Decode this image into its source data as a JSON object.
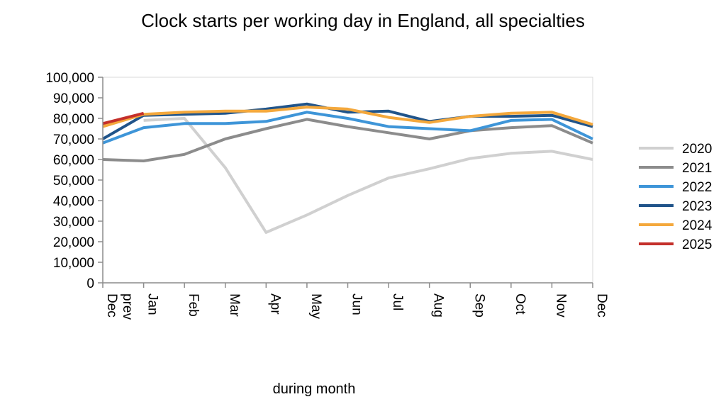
{
  "chart_data": {
    "type": "line",
    "title": "Clock starts per working day in England, all specialties",
    "xlabel": "during month",
    "ylabel": "",
    "ylim": [
      0,
      100000
    ],
    "yticks": [
      0,
      10000,
      20000,
      30000,
      40000,
      50000,
      60000,
      70000,
      80000,
      90000,
      100000
    ],
    "ytick_labels": [
      "0",
      "10,000",
      "20,000",
      "30,000",
      "40,000",
      "50,000",
      "60,000",
      "70,000",
      "80,000",
      "90,000",
      "100,000"
    ],
    "categories": [
      "Dec prev",
      "Jan",
      "Feb",
      "Mar",
      "Apr",
      "May",
      "Jun",
      "Jul",
      "Aug",
      "Sep",
      "Oct",
      "Nov",
      "Dec"
    ],
    "grid": false,
    "legend_position": "right",
    "series": [
      {
        "name": "2020",
        "color": "#d0d0d0",
        "values": [
          null,
          79000,
          80000,
          56000,
          24500,
          33000,
          42500,
          51000,
          55500,
          60500,
          63000,
          64000,
          60000
        ]
      },
      {
        "name": "2021",
        "color": "#8c8c8c",
        "values": [
          60000,
          59300,
          62500,
          70000,
          75000,
          79500,
          76000,
          73000,
          70000,
          74000,
          75500,
          76500,
          68000
        ]
      },
      {
        "name": "2022",
        "color": "#3e95d8",
        "values": [
          68000,
          75500,
          77500,
          77500,
          78500,
          83000,
          80000,
          76000,
          75000,
          74000,
          79000,
          79500,
          70000
        ]
      },
      {
        "name": "2023",
        "color": "#20548a",
        "values": [
          70000,
          81500,
          82000,
          82500,
          84500,
          87000,
          83000,
          83500,
          78500,
          81000,
          81000,
          81500,
          76000
        ]
      },
      {
        "name": "2024",
        "color": "#f4a83c",
        "values": [
          76000,
          82000,
          83000,
          83500,
          83500,
          85500,
          84500,
          80500,
          78000,
          81000,
          82500,
          83000,
          77000
        ]
      },
      {
        "name": "2025",
        "color": "#c4302b",
        "values": [
          77500,
          82500,
          null,
          null,
          null,
          null,
          null,
          null,
          null,
          null,
          null,
          null,
          null
        ]
      }
    ]
  }
}
